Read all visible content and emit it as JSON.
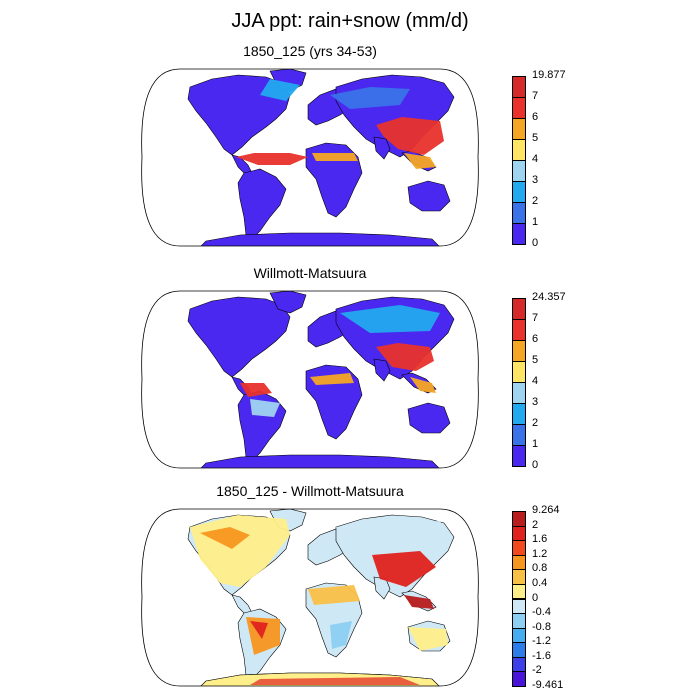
{
  "title": "JJA ppt: rain+snow (mm/d)",
  "panels": [
    {
      "title": "1850_125 (yrs 34-53)",
      "colorbar": {
        "labels": [
          "19.877",
          "7",
          "6",
          "5",
          "4",
          "3",
          "2",
          "1",
          "0"
        ],
        "colors": [
          "#d62a2a",
          "#e8322b",
          "#f5a623",
          "#ffe566",
          "#9fd4f0",
          "#22a9ef",
          "#3a72e8",
          "#4b28f0"
        ]
      }
    },
    {
      "title": "Willmott-Matsuura",
      "colorbar": {
        "labels": [
          "24.357",
          "7",
          "6",
          "5",
          "4",
          "3",
          "2",
          "1",
          "0"
        ],
        "colors": [
          "#d62a2a",
          "#e8322b",
          "#f5a623",
          "#ffe566",
          "#9fd4f0",
          "#22a9ef",
          "#3a72e8",
          "#4b28f0"
        ]
      }
    },
    {
      "title": "1850_125 - Willmott-Matsuura",
      "colorbar": {
        "labels": [
          "9.264",
          "2",
          "1.6",
          "1.2",
          "0.8",
          "0.4",
          "0",
          "-0.4",
          "-0.8",
          "-1.2",
          "-1.6",
          "-2",
          "-9.461"
        ],
        "colors": [
          "#b81c1c",
          "#e0221e",
          "#f04a1e",
          "#f7961f",
          "#f9c046",
          "#ffef8a",
          "#cfe8f6",
          "#8ccff2",
          "#46aef0",
          "#2d7de8",
          "#3c40e6",
          "#4a14d8"
        ]
      }
    }
  ]
}
